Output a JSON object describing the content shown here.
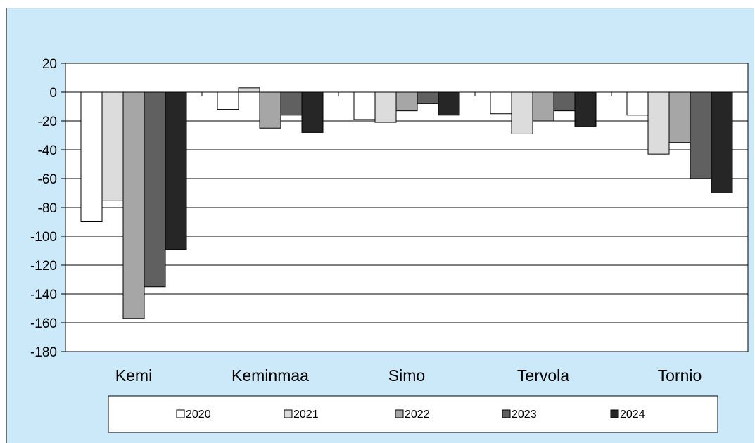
{
  "chart_data": {
    "type": "bar",
    "categories": [
      "Kemi",
      "Keminmaa",
      "Simo",
      "Tervola",
      "Tornio"
    ],
    "series": [
      {
        "name": "2020",
        "color": "#ffffff",
        "values": [
          -90,
          -12,
          -19,
          -15,
          -16
        ]
      },
      {
        "name": "2021",
        "color": "#dcdcdc",
        "values": [
          -75,
          3,
          -21,
          -29,
          -43
        ]
      },
      {
        "name": "2022",
        "color": "#a6a6a6",
        "values": [
          -157,
          -25,
          -13,
          -20,
          -35
        ]
      },
      {
        "name": "2023",
        "color": "#606060",
        "values": [
          -135,
          -16,
          -8,
          -13,
          -60
        ]
      },
      {
        "name": "2024",
        "color": "#262626",
        "values": [
          -109,
          -28,
          -16,
          -24,
          -70
        ]
      }
    ],
    "ylim": [
      -180,
      20
    ],
    "yticks": [
      20,
      0,
      -20,
      -40,
      -60,
      -80,
      -100,
      -120,
      -140,
      -160,
      -180
    ],
    "grid": true,
    "legend_position": "bottom",
    "colors": {
      "background": "#cce9fa",
      "plot_area": "#ffffff",
      "border": "#000000"
    }
  }
}
